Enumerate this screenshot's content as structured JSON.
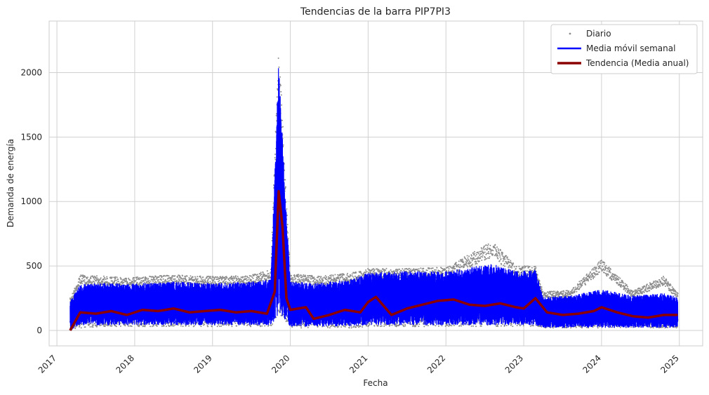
{
  "chart_data": {
    "type": "line",
    "title": "Tendencias de la barra PIP7PI3",
    "xlabel": "Fecha",
    "ylabel": "Demanda de energía",
    "x_ticks": [
      "2017",
      "2018",
      "2019",
      "2020",
      "2021",
      "2022",
      "2023",
      "2024",
      "2025"
    ],
    "y_ticks": [
      "0",
      "500",
      "1000",
      "1500",
      "2000"
    ],
    "xlim": [
      2016.9,
      2025.3
    ],
    "ylim": [
      -120,
      2400
    ],
    "grid": true,
    "legend_position": "top-right",
    "series": [
      {
        "name": "Diario",
        "style": "points",
        "color": "#8c8c8c",
        "band": [
          {
            "x": 2017.17,
            "low": 0,
            "high": 250
          },
          {
            "x": 2017.3,
            "low": 20,
            "high": 430
          },
          {
            "x": 2017.6,
            "low": 30,
            "high": 420
          },
          {
            "x": 2017.9,
            "low": 30,
            "high": 410
          },
          {
            "x": 2018.2,
            "low": 30,
            "high": 420
          },
          {
            "x": 2018.5,
            "low": 30,
            "high": 430
          },
          {
            "x": 2018.9,
            "low": 30,
            "high": 420
          },
          {
            "x": 2019.2,
            "low": 30,
            "high": 420
          },
          {
            "x": 2019.5,
            "low": 30,
            "high": 430
          },
          {
            "x": 2019.75,
            "low": 30,
            "high": 470
          },
          {
            "x": 2019.85,
            "low": 100,
            "high": 2280
          },
          {
            "x": 2019.95,
            "low": 60,
            "high": 1000
          },
          {
            "x": 2020.0,
            "low": 20,
            "high": 440
          },
          {
            "x": 2020.4,
            "low": 20,
            "high": 420
          },
          {
            "x": 2020.8,
            "low": 20,
            "high": 450
          },
          {
            "x": 2021.0,
            "low": 30,
            "high": 480
          },
          {
            "x": 2021.5,
            "low": 30,
            "high": 480
          },
          {
            "x": 2022.0,
            "low": 30,
            "high": 490
          },
          {
            "x": 2022.6,
            "low": 30,
            "high": 690
          },
          {
            "x": 2022.9,
            "low": 30,
            "high": 500
          },
          {
            "x": 2023.15,
            "low": 30,
            "high": 500
          },
          {
            "x": 2023.25,
            "low": 20,
            "high": 300
          },
          {
            "x": 2023.6,
            "low": 20,
            "high": 310
          },
          {
            "x": 2024.0,
            "low": 20,
            "high": 550
          },
          {
            "x": 2024.4,
            "low": 20,
            "high": 310
          },
          {
            "x": 2024.8,
            "low": 20,
            "high": 420
          },
          {
            "x": 2024.98,
            "low": 20,
            "high": 290
          }
        ]
      },
      {
        "name": "Media móvil semanal",
        "style": "line",
        "color": "#0000ff",
        "band": [
          {
            "x": 2017.17,
            "low": 0,
            "high": 230
          },
          {
            "x": 2017.3,
            "low": 40,
            "high": 360
          },
          {
            "x": 2017.6,
            "low": 40,
            "high": 370
          },
          {
            "x": 2017.9,
            "low": 40,
            "high": 360
          },
          {
            "x": 2018.2,
            "low": 40,
            "high": 370
          },
          {
            "x": 2018.5,
            "low": 40,
            "high": 380
          },
          {
            "x": 2018.9,
            "low": 40,
            "high": 370
          },
          {
            "x": 2019.2,
            "low": 40,
            "high": 370
          },
          {
            "x": 2019.5,
            "low": 40,
            "high": 380
          },
          {
            "x": 2019.75,
            "low": 40,
            "high": 400
          },
          {
            "x": 2019.85,
            "low": 120,
            "high": 2080
          },
          {
            "x": 2019.95,
            "low": 70,
            "high": 900
          },
          {
            "x": 2020.0,
            "low": 30,
            "high": 380
          },
          {
            "x": 2020.4,
            "low": 30,
            "high": 370
          },
          {
            "x": 2020.8,
            "low": 30,
            "high": 400
          },
          {
            "x": 2021.0,
            "low": 40,
            "high": 450
          },
          {
            "x": 2021.5,
            "low": 40,
            "high": 460
          },
          {
            "x": 2022.0,
            "low": 40,
            "high": 460
          },
          {
            "x": 2022.6,
            "low": 40,
            "high": 520
          },
          {
            "x": 2022.9,
            "low": 40,
            "high": 460
          },
          {
            "x": 2023.15,
            "low": 40,
            "high": 470
          },
          {
            "x": 2023.25,
            "low": 20,
            "high": 260
          },
          {
            "x": 2023.6,
            "low": 20,
            "high": 270
          },
          {
            "x": 2024.0,
            "low": 20,
            "high": 320
          },
          {
            "x": 2024.4,
            "low": 20,
            "high": 270
          },
          {
            "x": 2024.8,
            "low": 20,
            "high": 290
          },
          {
            "x": 2024.98,
            "low": 20,
            "high": 260
          }
        ]
      },
      {
        "name": "Tendencia (Media anual)",
        "style": "line",
        "color": "#8b0000",
        "x": [
          2017.17,
          2017.3,
          2017.5,
          2017.7,
          2017.9,
          2018.1,
          2018.3,
          2018.5,
          2018.7,
          2018.9,
          2019.1,
          2019.3,
          2019.5,
          2019.7,
          2019.8,
          2019.85,
          2019.9,
          2019.95,
          2020.0,
          2020.2,
          2020.3,
          2020.5,
          2020.7,
          2020.9,
          2021.0,
          2021.1,
          2021.3,
          2021.5,
          2021.7,
          2021.9,
          2022.1,
          2022.3,
          2022.5,
          2022.7,
          2022.9,
          2023.0,
          2023.15,
          2023.3,
          2023.5,
          2023.7,
          2023.9,
          2024.0,
          2024.2,
          2024.4,
          2024.6,
          2024.8,
          2024.98
        ],
        "values": [
          0,
          140,
          130,
          150,
          120,
          160,
          150,
          170,
          140,
          150,
          160,
          140,
          150,
          130,
          300,
          1080,
          800,
          250,
          160,
          180,
          90,
          120,
          160,
          140,
          220,
          260,
          120,
          170,
          200,
          230,
          240,
          200,
          190,
          210,
          180,
          170,
          250,
          140,
          120,
          130,
          150,
          180,
          140,
          110,
          100,
          120,
          120
        ]
      }
    ]
  }
}
